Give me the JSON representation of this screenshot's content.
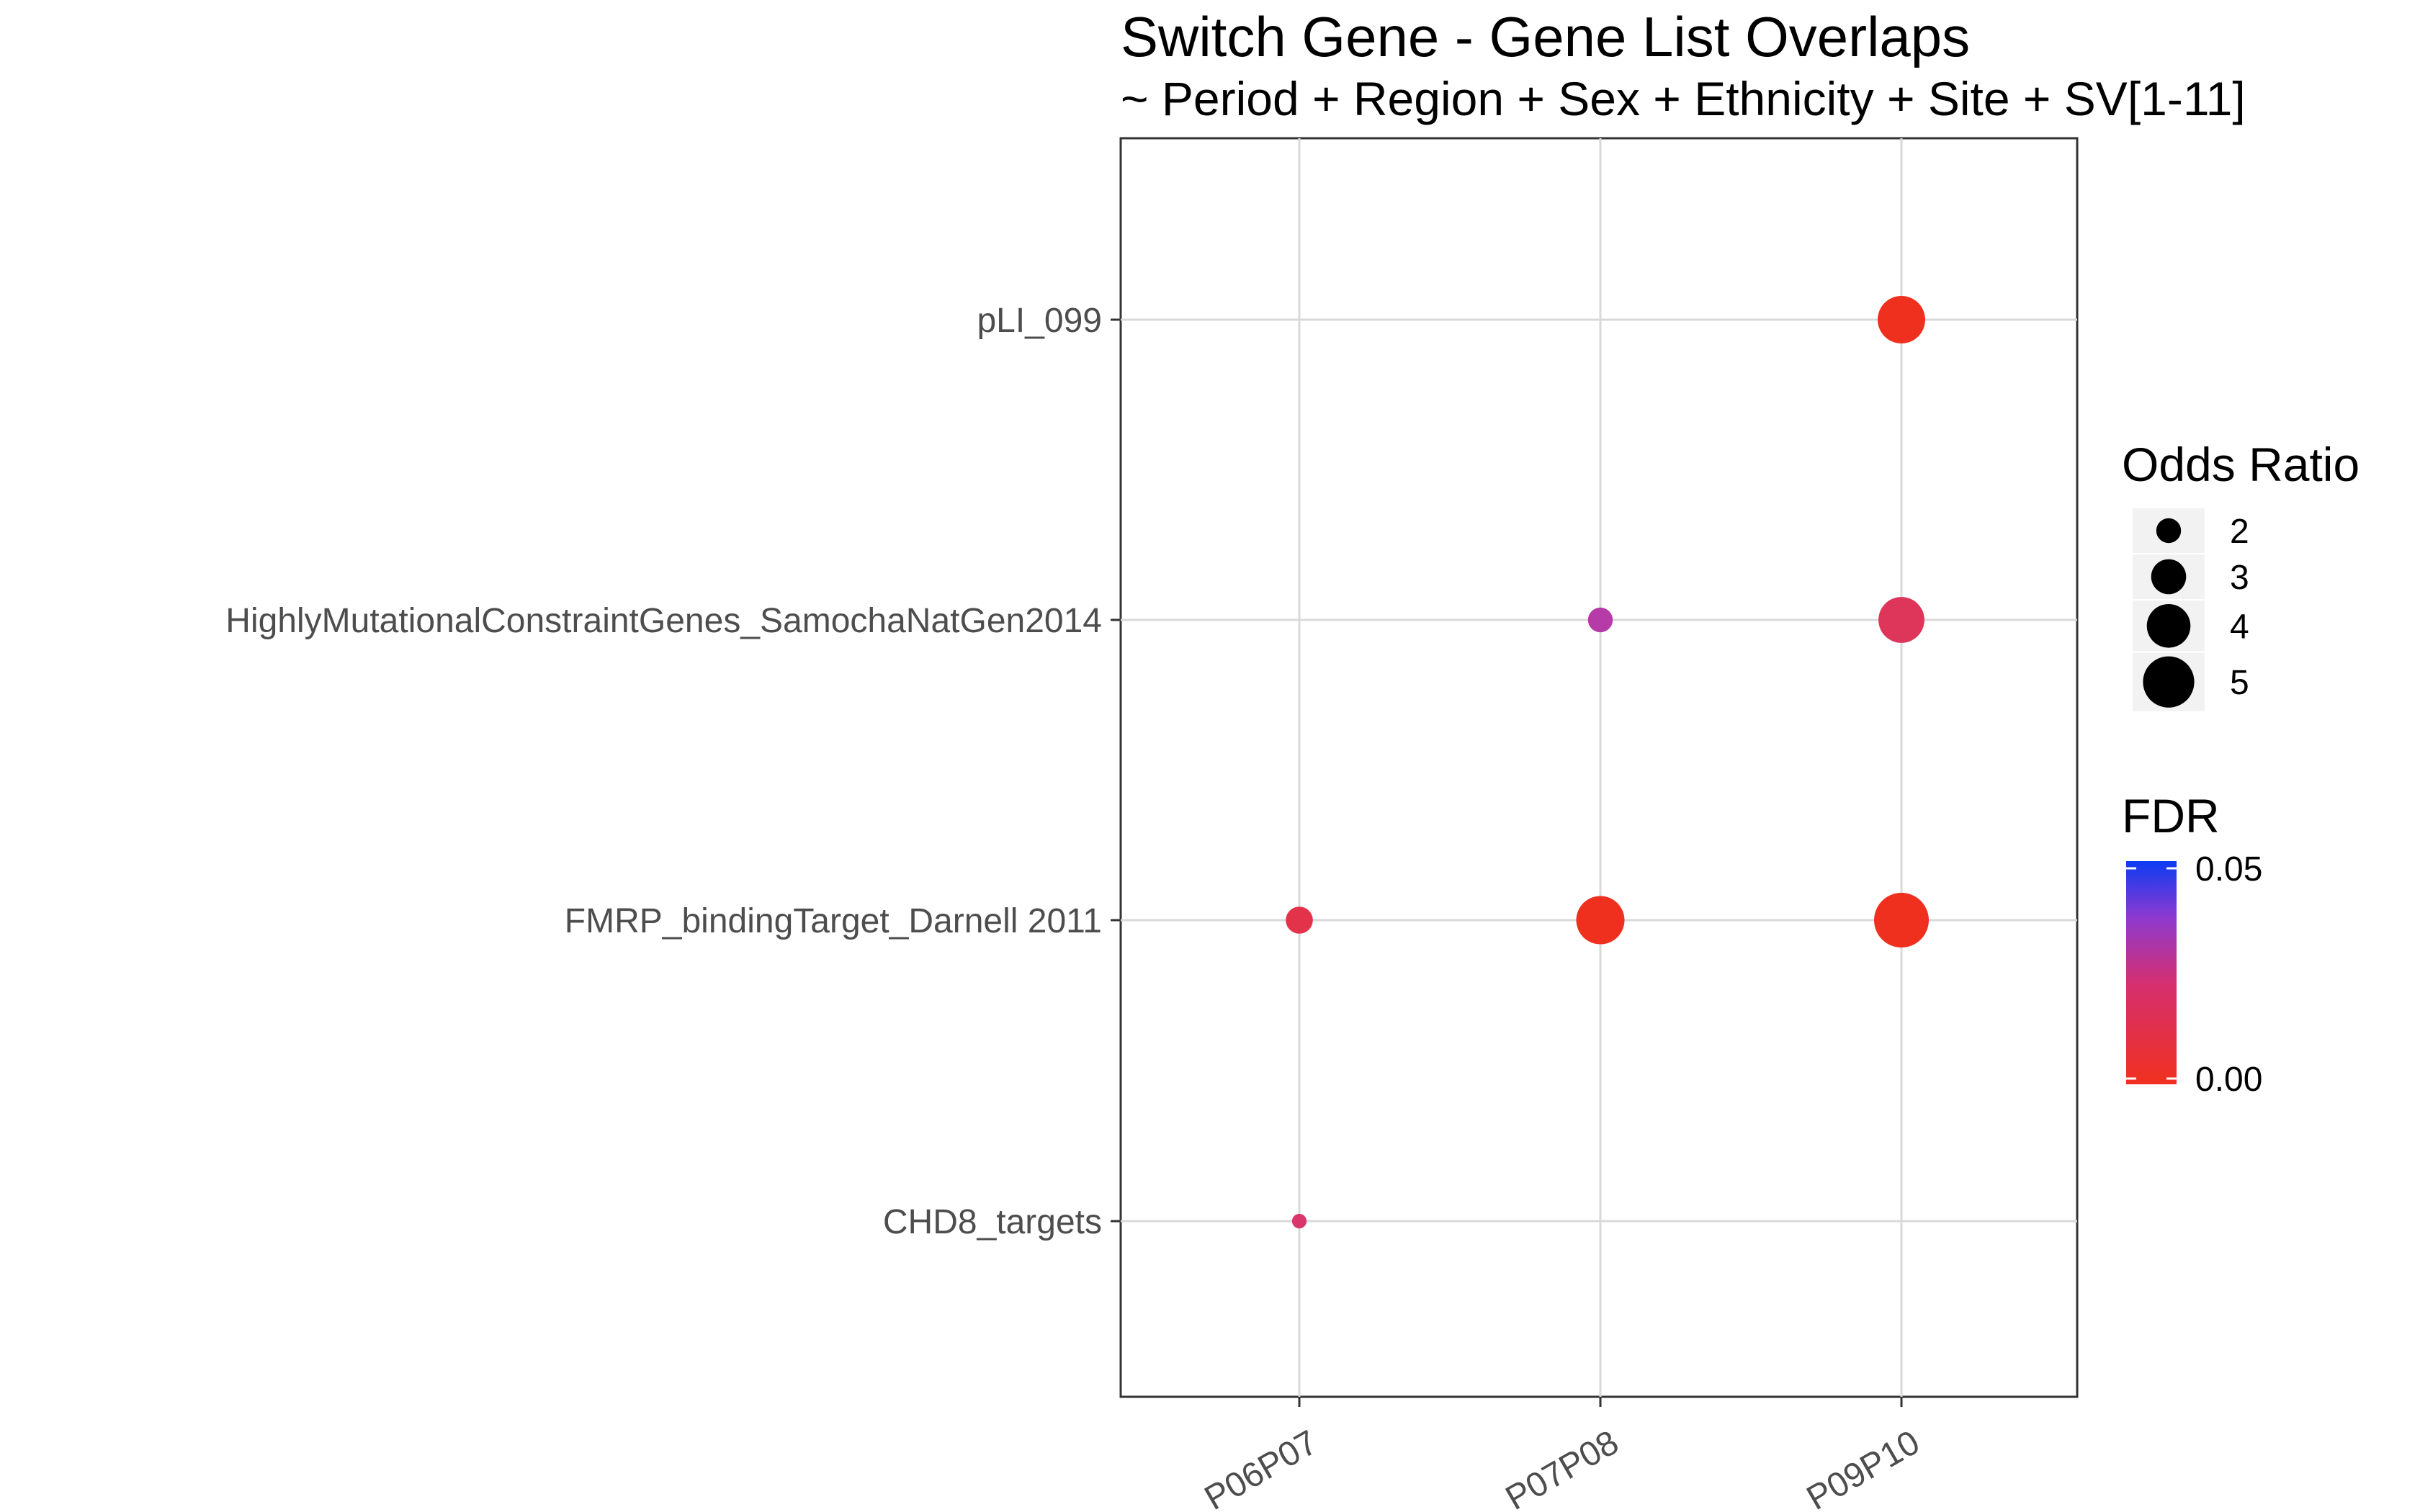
{
  "chart_data": {
    "type": "scatter",
    "title": "Switch Gene - Gene List Overlaps",
    "subtitle": "~ Period + Region + Sex + Ethnicity + Site + SV[1-11]",
    "x_categories": [
      "P06P07",
      "P07P08",
      "P09P10"
    ],
    "y_categories": [
      "pLI_099",
      "HighlyMutationalConstraintGenes_SamochaNatGen2014",
      "FMRP_bindingTarget_Darnell 2011",
      "CHD8_targets"
    ],
    "points": [
      {
        "x": "P09P10",
        "y": "pLI_099",
        "odds_ratio": 4.5,
        "fdr": 0.0
      },
      {
        "x": "P07P08",
        "y": "HighlyMutationalConstraintGenes_SamochaNatGen2014",
        "odds_ratio": 2.0,
        "fdr": 0.032
      },
      {
        "x": "P09P10",
        "y": "HighlyMutationalConstraintGenes_SamochaNatGen2014",
        "odds_ratio": 4.3,
        "fdr": 0.014
      },
      {
        "x": "P06P07",
        "y": "FMRP_bindingTarget_Darnell 2011",
        "odds_ratio": 2.2,
        "fdr": 0.01
      },
      {
        "x": "P07P08",
        "y": "FMRP_bindingTarget_Darnell 2011",
        "odds_ratio": 4.6,
        "fdr": 0.0
      },
      {
        "x": "P09P10",
        "y": "FMRP_bindingTarget_Darnell 2011",
        "odds_ratio": 5.5,
        "fdr": 0.0
      },
      {
        "x": "P06P07",
        "y": "CHD8_targets",
        "odds_ratio": 1.2,
        "fdr": 0.018
      }
    ],
    "size_legend": {
      "title": "Odds Ratio",
      "values": [
        2,
        3,
        4,
        5
      ]
    },
    "color_legend": {
      "title": "FDR",
      "labels": [
        "0.05",
        "0.00"
      ],
      "range": [
        0.0,
        0.05
      ],
      "low_color": "#f0301f",
      "mid_color": "#c93aa0",
      "high_color": "#0c3bf3"
    },
    "grid": true,
    "legend_position": "right"
  }
}
